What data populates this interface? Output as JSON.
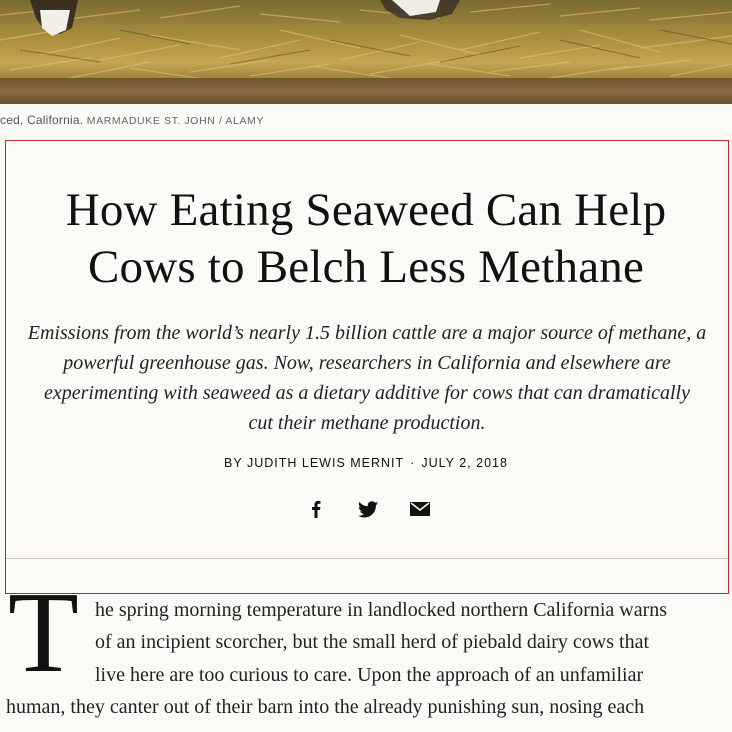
{
  "caption": {
    "text": "ced, California.",
    "credit": "MARMADUKE ST. JOHN / ALAMY"
  },
  "article": {
    "title_line1": "How Eating Seaweed Can Help",
    "title_line2": "Cows to Belch Less Methane",
    "dek_lines": [
      "Emissions from the world’s nearly 1.5 billion cattle are a major source of methane, a",
      "powerful greenhouse gas. Now, researchers in California and elsewhere are",
      "experimenting with seaweed as a dietary additive for cows that can dramatically",
      "cut their methane production."
    ],
    "byline": "BY JUDITH LEWIS MERNIT",
    "separator": "·",
    "date": "JULY 2, 2018",
    "share": {
      "facebook": "facebook-icon",
      "twitter": "twitter-icon",
      "email": "email-icon"
    },
    "colors": {
      "header_border": "#c9232b",
      "background": "#fbfaf6"
    },
    "dropcap": "T",
    "body_lines": [
      "he spring morning temperature in landlocked northern California warns",
      "of an incipient scorcher, but the small herd of piebald dairy cows that",
      "live here are too curious to care. Upon the approach of an unfamiliar",
      "human, they canter out of their barn into the already punishing sun, nosing each"
    ]
  }
}
